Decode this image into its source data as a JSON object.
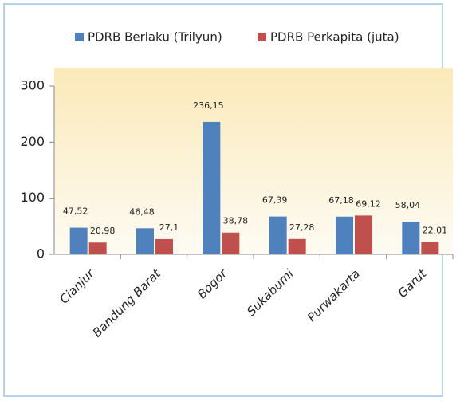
{
  "chart_data": {
    "type": "bar",
    "categories": [
      "Cianjur",
      "Bandung Barat",
      "Bogor",
      "Sukabumi",
      "Purwakarta",
      "Garut"
    ],
    "series": [
      {
        "name": "PDRB Berlaku (Trilyun)",
        "color": "#4f81bd",
        "values": [
          47.52,
          46.48,
          236.15,
          67.39,
          67.18,
          58.04
        ],
        "value_labels": [
          "47,52",
          "46,48",
          "236,15",
          "67,39",
          "67,18",
          "58,04"
        ]
      },
      {
        "name": "PDRB Perkapita (juta)",
        "color": "#c0504d",
        "values": [
          20.98,
          27.1,
          38.78,
          27.28,
          69.12,
          22.01
        ],
        "value_labels": [
          "20,98",
          "27,1",
          "38,78",
          "27,28",
          "69,12",
          "22,01"
        ]
      }
    ],
    "ylim": [
      0,
      300
    ],
    "yticks": [
      0,
      100,
      200,
      300
    ],
    "legend": "top"
  }
}
